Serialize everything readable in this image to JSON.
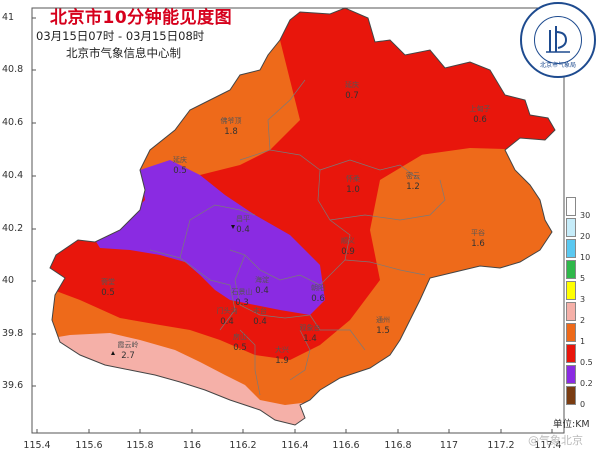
{
  "title": "北京市10分钟能见度图",
  "time_range": "03月15日07时 - 03月15日08时",
  "issuer": "北京市气象信息中心制",
  "lat_axis": [
    "41",
    "40.8",
    "40.6",
    "40.4",
    "40.2",
    "40",
    "39.8",
    "39.6"
  ],
  "lon_axis": [
    "115.4",
    "115.6",
    "115.8",
    "116",
    "116.2",
    "116.4",
    "116.6",
    "116.8",
    "117",
    "117.2",
    "117.4"
  ],
  "legend": {
    "unit_label": "单位:KM",
    "classes": [
      {
        "value": "30",
        "color": "#ffffff"
      },
      {
        "value": "20",
        "color": "#c6ecf9"
      },
      {
        "value": "10",
        "color": "#5ac8f0"
      },
      {
        "value": "5",
        "color": "#2fb84a"
      },
      {
        "value": "3",
        "color": "#ffff00"
      },
      {
        "value": "2",
        "color": "#f5b0a8"
      },
      {
        "value": "1",
        "color": "#ee6a1a"
      },
      {
        "value": "0.5",
        "color": "#e8160c"
      },
      {
        "value": "0.2",
        "color": "#8a2be2"
      },
      {
        "value": "0",
        "color": "#7a3c12"
      }
    ]
  },
  "stations": [
    {
      "name": "延庆",
      "value": "0.7"
    },
    {
      "name": "上甸子",
      "value": "0.6"
    },
    {
      "name": "佛爷顶",
      "value": "1.8"
    },
    {
      "name": "延庆",
      "value": "0.5"
    },
    {
      "name": "怀柔",
      "value": "1.0"
    },
    {
      "name": "密云",
      "value": "1.2"
    },
    {
      "name": "昌平",
      "value": "0.4"
    },
    {
      "name": "平谷",
      "value": "1.6"
    },
    {
      "name": "顺义",
      "value": "0.9"
    },
    {
      "name": "斋堂",
      "value": "0.5"
    },
    {
      "name": "海淀",
      "value": "0.4"
    },
    {
      "name": "朝阳",
      "value": "0.6"
    },
    {
      "name": "石景山",
      "value": "0.3"
    },
    {
      "name": "门头沟",
      "value": "0.4"
    },
    {
      "name": "丰台",
      "value": "0.4"
    },
    {
      "name": "通州",
      "value": "1.5"
    },
    {
      "name": "房山",
      "value": "0.5"
    },
    {
      "name": "观象台",
      "value": "1.4"
    },
    {
      "name": "霞云岭",
      "value": "2.7"
    },
    {
      "name": "大兴",
      "value": "1.9"
    }
  ],
  "logo_text": "BEIJING METEOROLOGICAL SERVICE",
  "logo_caption": "北京市气象局",
  "watermark": "@气象北京"
}
